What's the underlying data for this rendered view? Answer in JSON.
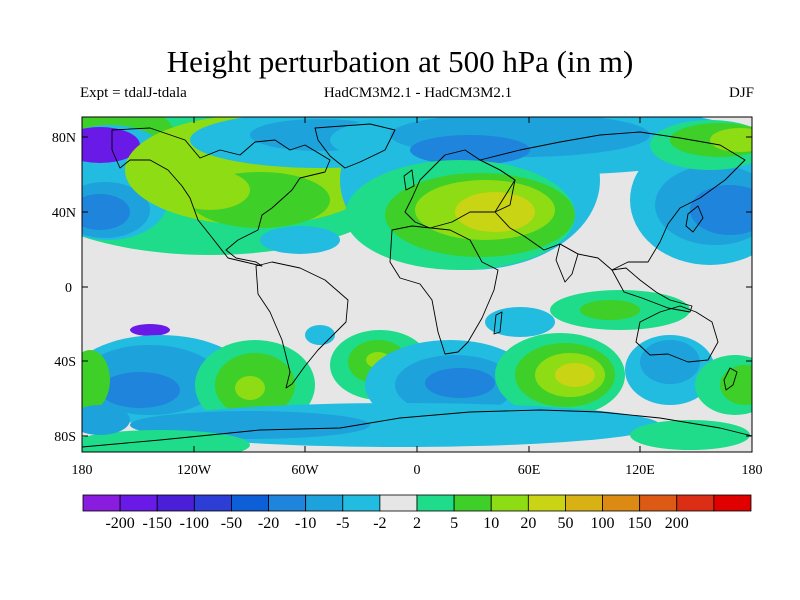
{
  "title": "Height perturbation at 500 hPa (in m)",
  "subtitle_left": "Expt = tdalJ-tdala",
  "subtitle_center": "HadCM3M2.1 - HadCM3M2.1",
  "subtitle_right": "DJF",
  "axes": {
    "y_ticks": [
      "80N",
      "40N",
      "0",
      "40S",
      "80S"
    ],
    "x_ticks": [
      "180",
      "120W",
      "60W",
      "0",
      "60E",
      "120E",
      "180"
    ]
  },
  "colorbar": {
    "colors": [
      "#8a1ce0",
      "#6a1ae6",
      "#4b1ed8",
      "#2c3ed6",
      "#0d5fd8",
      "#1e84dc",
      "#1ea2dc",
      "#22bce0",
      "#e6e6e6",
      "#1edc8a",
      "#3ecf28",
      "#8edc14",
      "#c8d414",
      "#d8b214",
      "#dc8a14",
      "#dc5a14",
      "#dc2e14",
      "#e00000"
    ],
    "labels": [
      "-200",
      "-150",
      "-100",
      "-50",
      "-20",
      "-10",
      "-5",
      "-2",
      "2",
      "5",
      "10",
      "20",
      "50",
      "100",
      "150",
      "200"
    ]
  }
}
